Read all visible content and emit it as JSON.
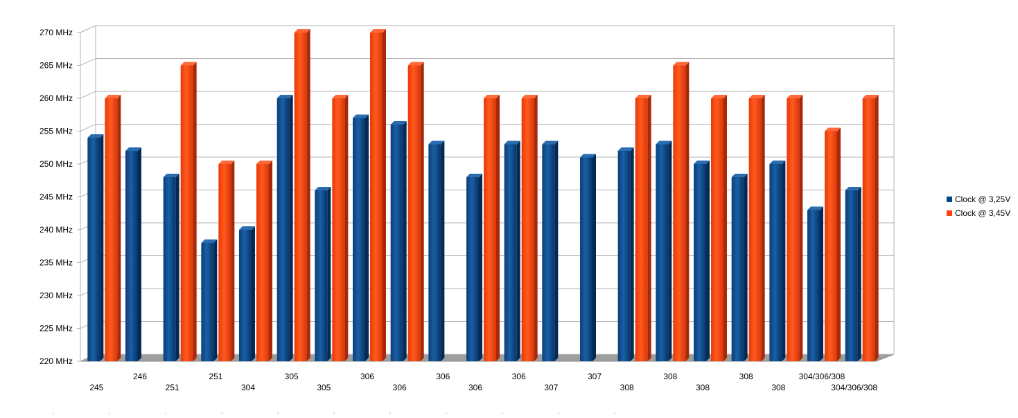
{
  "chart_data": {
    "type": "bar",
    "style": "3d-clustered-column",
    "categories": [
      "245",
      "246",
      "251",
      "251",
      "304",
      "305",
      "305",
      "306",
      "306",
      "306",
      "306",
      "306",
      "307",
      "307",
      "308",
      "308",
      "308",
      "308",
      "308",
      "304/306/308",
      "304/306/308"
    ],
    "series": [
      {
        "name": "Clock @ 3,25V",
        "color": "#004586",
        "values": [
          254,
          252,
          248,
          238,
          240,
          260,
          246,
          257,
          256,
          253,
          248,
          253,
          253,
          251,
          252,
          253,
          250,
          248,
          250,
          243,
          246
        ]
      },
      {
        "name": "Clock @ 3,45V",
        "color": "#ff420e",
        "values": [
          260,
          null,
          265,
          250,
          250,
          270,
          260,
          270,
          265,
          null,
          260,
          260,
          null,
          null,
          260,
          265,
          260,
          260,
          260,
          255,
          260
        ]
      }
    ],
    "y_tick_labels": [
      "220 MHz",
      "225 MHz",
      "230 MHz",
      "235 MHz",
      "240 MHz",
      "245 MHz",
      "250 MHz",
      "255 MHz",
      "260 MHz",
      "265 MHz",
      "270 MHz"
    ],
    "ylim": [
      220,
      270
    ],
    "ytick_step": 5,
    "grid": true,
    "legend_position": "right",
    "title": "",
    "xlabel": "",
    "ylabel": ""
  }
}
